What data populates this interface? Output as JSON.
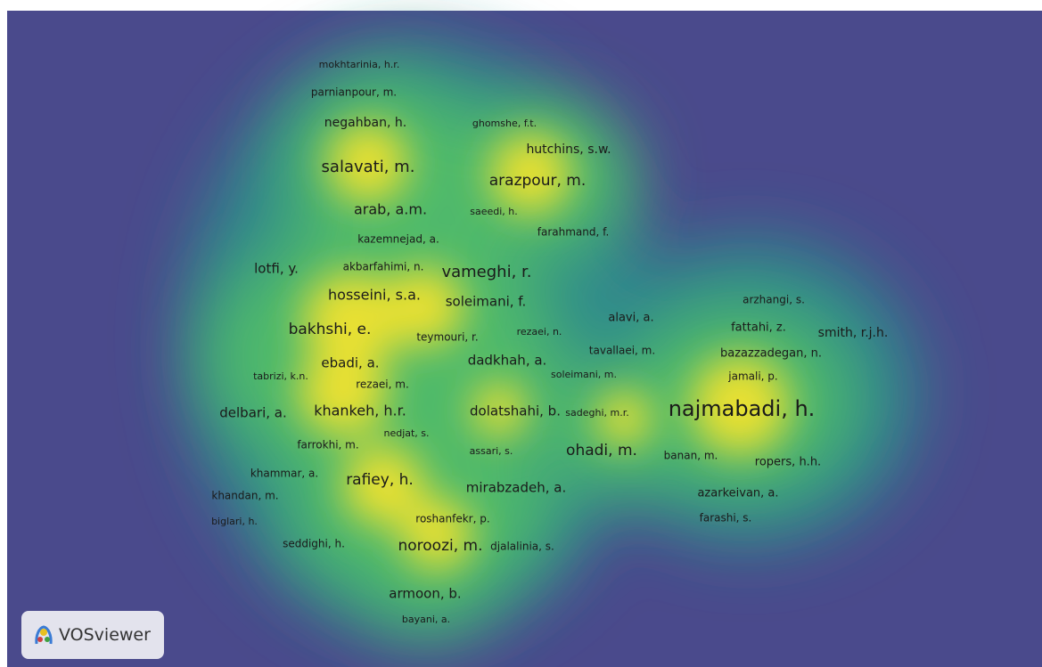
{
  "labels": [
    "mokhtarinia, h.r.",
    "parnianpour, m.",
    "negahban, h.",
    "ghomshe, f.t.",
    "hutchins, s.w.",
    "salavati, m.",
    "arazpour, m.",
    "arab, a.m.",
    "saeedi, h.",
    "kazemnejad, a.",
    "farahmand, f.",
    "lotfi, y.",
    "akbarfahimi, n.",
    "vameghi, r.",
    "hosseini, s.a.",
    "soleimani, f.",
    "arzhangi, s.",
    "alavi, a.",
    "fattahi, z.",
    "smith, r.j.h.",
    "bakhshi, e.",
    "teymouri, r.",
    "rezaei, n.",
    "tavallaei, m.",
    "bazazzadegan, n.",
    "ebadi, a.",
    "dadkhah, a.",
    "tabrizi, k.n.",
    "rezaei, m.",
    "soleimani, m.",
    "jamali, p.",
    "delbari, a.",
    "khankeh, h.r.",
    "dolatshahi, b.",
    "sadeghi, m.r.",
    "najmabadi, h.",
    "nedjat, s.",
    "farrokhi, m.",
    "assari, s.",
    "ohadi, m.",
    "banan, m.",
    "ropers, h.h.",
    "khammar, a.",
    "rafiey, h.",
    "mirabzadeh, a.",
    "khandan, m.",
    "azarkeivan, a.",
    "roshanfekr, p.",
    "biglari, h.",
    "farashi, s.",
    "seddighi, h.",
    "noroozi, m.",
    "djalalinia, s.",
    "armoon, b.",
    "bayani, a."
  ],
  "logo": "VOSviewer"
}
